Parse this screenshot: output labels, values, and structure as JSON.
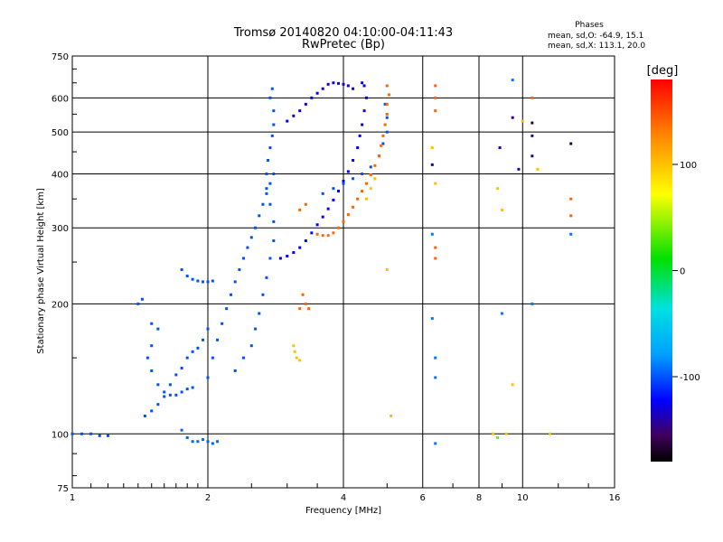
{
  "chart_data": {
    "type": "scatter",
    "title": "Tromsø 20140820 04:10:00-04:11:43",
    "subtitle": "RwPretec (Bp)",
    "xlabel": "Frequency [MHz]",
    "ylabel": "Stationary phase Virtual Height [km]",
    "x_scale": "log",
    "y_scale": "log",
    "xlim": [
      1,
      16
    ],
    "ylim": [
      75,
      750
    ],
    "x_ticks": [
      1,
      2,
      4,
      6,
      8,
      10,
      16
    ],
    "x_tick_labels": [
      "1",
      "2",
      "4",
      "6",
      "8",
      "10",
      "16"
    ],
    "y_ticks": [
      75,
      100,
      200,
      300,
      400,
      500,
      600,
      750
    ],
    "y_tick_labels": [
      "75",
      "100",
      "200",
      "300",
      "400",
      "500",
      "600",
      "750"
    ],
    "grid": true,
    "phase_stats": {
      "heading": "Phases",
      "line_o": "mean, sd,O: -64.9, 15.1",
      "line_x": "mean, sd,X: 113.1, 20.0"
    },
    "colorbar": {
      "label": "[deg]",
      "range": [
        -180,
        180
      ],
      "ticks": [
        100,
        0,
        -100
      ],
      "tick_labels": [
        "100",
        "0",
        "-100"
      ]
    },
    "traces": [
      {
        "name": "",
        "phase": -100,
        "points": [
          [
            1.0,
            100
          ],
          [
            1.05,
            100
          ],
          [
            1.1,
            100
          ],
          [
            1.15,
            99
          ],
          [
            1.2,
            99
          ]
        ]
      },
      {
        "name": "",
        "phase": -95,
        "points": [
          [
            1.75,
            102
          ],
          [
            1.8,
            98
          ],
          [
            1.85,
            96
          ],
          [
            1.9,
            96
          ],
          [
            1.95,
            97
          ],
          [
            2.0,
            96
          ],
          [
            2.05,
            95
          ],
          [
            2.1,
            96
          ]
        ]
      },
      {
        "name": "",
        "phase": -100,
        "points": [
          [
            1.4,
            200
          ],
          [
            1.43,
            205
          ],
          [
            1.5,
            180
          ],
          [
            1.55,
            175
          ],
          [
            1.5,
            160
          ],
          [
            1.47,
            150
          ],
          [
            1.5,
            140
          ],
          [
            1.55,
            130
          ],
          [
            1.6,
            125
          ],
          [
            1.65,
            123
          ],
          [
            1.7,
            123
          ],
          [
            1.75,
            125
          ],
          [
            1.8,
            127
          ],
          [
            1.85,
            128
          ]
        ]
      },
      {
        "name": "",
        "phase": -100,
        "points": [
          [
            1.45,
            110
          ],
          [
            1.5,
            113
          ],
          [
            1.55,
            117
          ],
          [
            1.6,
            122
          ],
          [
            1.65,
            130
          ],
          [
            1.7,
            137
          ],
          [
            1.75,
            142
          ],
          [
            1.8,
            150
          ],
          [
            1.85,
            155
          ],
          [
            1.9,
            158
          ],
          [
            1.95,
            165
          ],
          [
            2.0,
            175
          ]
        ]
      },
      {
        "name": "",
        "phase": -100,
        "points": [
          [
            1.75,
            240
          ],
          [
            1.8,
            232
          ],
          [
            1.85,
            228
          ],
          [
            1.9,
            226
          ],
          [
            1.95,
            225
          ],
          [
            2.0,
            225
          ],
          [
            2.05,
            226
          ]
        ]
      },
      {
        "name": "",
        "phase": -100,
        "points": [
          [
            2.0,
            135
          ],
          [
            2.05,
            150
          ],
          [
            2.1,
            165
          ],
          [
            2.15,
            180
          ],
          [
            2.2,
            195
          ],
          [
            2.25,
            210
          ],
          [
            2.3,
            225
          ],
          [
            2.35,
            240
          ],
          [
            2.4,
            255
          ],
          [
            2.45,
            270
          ],
          [
            2.5,
            285
          ],
          [
            2.55,
            300
          ],
          [
            2.6,
            320
          ],
          [
            2.65,
            340
          ],
          [
            2.7,
            360
          ],
          [
            2.75,
            380
          ],
          [
            2.8,
            400
          ]
        ]
      },
      {
        "name": "",
        "phase": -100,
        "points": [
          [
            2.3,
            140
          ],
          [
            2.4,
            150
          ],
          [
            2.5,
            160
          ],
          [
            2.55,
            175
          ],
          [
            2.6,
            190
          ],
          [
            2.65,
            210
          ],
          [
            2.7,
            230
          ],
          [
            2.75,
            255
          ],
          [
            2.8,
            280
          ],
          [
            2.8,
            310
          ],
          [
            2.75,
            340
          ],
          [
            2.7,
            370
          ],
          [
            2.7,
            400
          ],
          [
            2.72,
            430
          ],
          [
            2.75,
            460
          ],
          [
            2.78,
            490
          ],
          [
            2.8,
            520
          ],
          [
            2.8,
            560
          ],
          [
            2.75,
            600
          ],
          [
            2.78,
            630
          ]
        ]
      },
      {
        "name": "",
        "phase": -120,
        "points": [
          [
            2.9,
            255
          ],
          [
            3.0,
            258
          ],
          [
            3.1,
            263
          ],
          [
            3.2,
            270
          ],
          [
            3.3,
            280
          ],
          [
            3.4,
            292
          ],
          [
            3.5,
            305
          ],
          [
            3.6,
            318
          ],
          [
            3.7,
            332
          ],
          [
            3.8,
            348
          ],
          [
            3.9,
            365
          ],
          [
            4.0,
            385
          ],
          [
            4.1,
            405
          ],
          [
            4.2,
            430
          ],
          [
            4.3,
            460
          ],
          [
            4.35,
            490
          ],
          [
            4.4,
            520
          ],
          [
            4.45,
            560
          ],
          [
            4.5,
            600
          ],
          [
            4.45,
            640
          ],
          [
            4.4,
            650
          ]
        ]
      },
      {
        "name": "",
        "phase": -125,
        "points": [
          [
            3.0,
            530
          ],
          [
            3.1,
            545
          ],
          [
            3.2,
            560
          ],
          [
            3.3,
            580
          ],
          [
            3.4,
            600
          ],
          [
            3.5,
            615
          ],
          [
            3.6,
            630
          ],
          [
            3.7,
            645
          ],
          [
            3.8,
            650
          ],
          [
            3.9,
            648
          ],
          [
            4.0,
            645
          ],
          [
            4.1,
            640
          ],
          [
            4.2,
            630
          ]
        ]
      },
      {
        "name": "",
        "phase": -100,
        "points": [
          [
            3.6,
            360
          ],
          [
            3.8,
            370
          ],
          [
            4.0,
            380
          ],
          [
            4.2,
            390
          ],
          [
            4.4,
            400
          ],
          [
            4.6,
            415
          ],
          [
            4.8,
            440
          ],
          [
            4.9,
            470
          ],
          [
            5.0,
            500
          ],
          [
            5.0,
            540
          ],
          [
            4.95,
            580
          ]
        ]
      },
      {
        "name": "",
        "phase": 140,
        "points": [
          [
            3.5,
            290
          ],
          [
            3.6,
            288
          ],
          [
            3.7,
            288
          ],
          [
            3.8,
            292
          ],
          [
            3.9,
            300
          ],
          [
            4.0,
            310
          ],
          [
            4.1,
            322
          ],
          [
            4.2,
            335
          ],
          [
            4.3,
            350
          ],
          [
            4.4,
            365
          ],
          [
            4.5,
            380
          ],
          [
            4.6,
            398
          ],
          [
            4.7,
            418
          ],
          [
            4.8,
            440
          ],
          [
            4.85,
            465
          ],
          [
            4.9,
            490
          ],
          [
            4.95,
            520
          ],
          [
            5.0,
            550
          ],
          [
            5.0,
            580
          ],
          [
            5.05,
            610
          ],
          [
            5.0,
            640
          ]
        ]
      },
      {
        "name": "",
        "phase": 140,
        "points": [
          [
            3.2,
            330
          ],
          [
            3.3,
            340
          ],
          [
            3.25,
            210
          ],
          [
            3.3,
            200
          ],
          [
            3.35,
            195
          ],
          [
            3.2,
            195
          ]
        ]
      },
      {
        "name": "",
        "phase": 100,
        "points": [
          [
            3.1,
            160
          ],
          [
            3.12,
            155
          ],
          [
            3.15,
            150
          ],
          [
            3.2,
            148
          ],
          [
            4.5,
            350
          ],
          [
            4.6,
            370
          ],
          [
            4.7,
            390
          ]
        ]
      },
      {
        "name": "",
        "phase": 140,
        "points": [
          [
            6.4,
            640
          ],
          [
            6.4,
            600
          ],
          [
            6.4,
            560
          ],
          [
            6.4,
            270
          ],
          [
            6.4,
            255
          ],
          [
            10.5,
            600
          ],
          [
            12.8,
            350
          ],
          [
            12.8,
            320
          ]
        ]
      },
      {
        "name": "",
        "phase": 100,
        "points": [
          [
            6.3,
            460
          ],
          [
            6.4,
            380
          ],
          [
            8.8,
            370
          ],
          [
            9.0,
            330
          ],
          [
            10.5,
            200
          ],
          [
            10.8,
            410
          ],
          [
            5.0,
            240
          ],
          [
            5.1,
            110
          ],
          [
            9.5,
            130
          ],
          [
            11.5,
            100
          ],
          [
            10.0,
            530
          ],
          [
            8.6,
            100
          ],
          [
            9.2,
            100
          ]
        ]
      },
      {
        "name": "",
        "phase": -90,
        "points": [
          [
            6.3,
            290
          ],
          [
            6.3,
            185
          ],
          [
            6.4,
            150
          ],
          [
            6.4,
            135
          ],
          [
            6.4,
            95
          ],
          [
            9.5,
            660
          ],
          [
            12.8,
            290
          ],
          [
            9.0,
            190
          ],
          [
            10.5,
            200
          ]
        ]
      },
      {
        "name": "",
        "phase": -140,
        "points": [
          [
            6.3,
            420
          ],
          [
            8.9,
            460
          ],
          [
            9.8,
            410
          ],
          [
            10.5,
            490
          ],
          [
            10.5,
            440
          ],
          [
            9.5,
            540
          ]
        ]
      },
      {
        "name": "",
        "phase": -160,
        "points": [
          [
            12.8,
            470
          ],
          [
            10.5,
            525
          ]
        ]
      },
      {
        "name": "",
        "phase": 30,
        "points": [
          [
            8.8,
            98
          ]
        ]
      }
    ]
  }
}
